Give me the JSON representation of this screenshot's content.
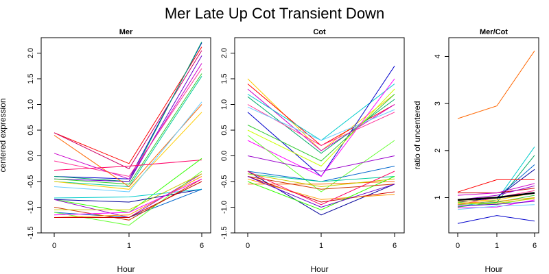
{
  "title": "Mer Late Up Cot Transient Down",
  "chart_data": [
    {
      "type": "line",
      "title": "Mer",
      "xlabel": "Hour",
      "ylabel": "centered expression",
      "categories": [
        "0",
        "1",
        "6"
      ],
      "ylim": [
        -1.5,
        2.3
      ],
      "yticks": [
        -1.5,
        -1.0,
        -0.5,
        0.0,
        0.5,
        1.0,
        1.5,
        2.0
      ],
      "ytick_labels": [
        "-1.5",
        "-1.0",
        "-0.5",
        "0.0",
        "0.5",
        "1.0",
        "1.5",
        "2.0"
      ],
      "series": [
        {
          "color": "#ff0000",
          "values": [
            0.45,
            -0.15,
            2.12
          ]
        },
        {
          "color": "#cc0066",
          "values": [
            0.45,
            -0.25,
            2.05
          ]
        },
        {
          "color": "#0000cc",
          "values": [
            -0.4,
            -0.45,
            2.2
          ]
        },
        {
          "color": "#00aa66",
          "values": [
            -0.4,
            -0.5,
            2.22
          ]
        },
        {
          "color": "#6600cc",
          "values": [
            -0.45,
            -0.5,
            1.95
          ]
        },
        {
          "color": "#cc00cc",
          "values": [
            0.05,
            -0.45,
            1.8
          ]
        },
        {
          "color": "#ff3399",
          "values": [
            -0.1,
            -0.4,
            1.7
          ]
        },
        {
          "color": "#33cc33",
          "values": [
            -0.45,
            -0.55,
            1.6
          ]
        },
        {
          "color": "#00cc99",
          "values": [
            -0.5,
            -0.6,
            1.55
          ]
        },
        {
          "color": "#ff6600",
          "values": [
            0.4,
            -0.6,
            1.0
          ]
        },
        {
          "color": "#ffcc00",
          "values": [
            -0.5,
            -0.65,
            0.85
          ]
        },
        {
          "color": "#66ccff",
          "values": [
            -0.6,
            -0.7,
            1.05
          ]
        },
        {
          "color": "#ff0066",
          "values": [
            -0.28,
            -0.2,
            -0.08
          ]
        },
        {
          "color": "#33ff00",
          "values": [
            -0.85,
            -1.1,
            -0.05
          ]
        },
        {
          "color": "#000099",
          "values": [
            -0.85,
            -0.9,
            -0.65
          ]
        },
        {
          "color": "#00cccc",
          "values": [
            -0.82,
            -0.8,
            -0.65
          ]
        },
        {
          "color": "#0066cc",
          "values": [
            -1.1,
            -1.2,
            -0.65
          ]
        },
        {
          "color": "#9900cc",
          "values": [
            -0.85,
            -1.2,
            -0.35
          ]
        },
        {
          "color": "#cc3300",
          "values": [
            -1.0,
            -1.25,
            -0.45
          ]
        },
        {
          "color": "#66ff33",
          "values": [
            -1.1,
            -1.35,
            -0.3
          ]
        },
        {
          "color": "#cccc00",
          "values": [
            -1.05,
            -1.05,
            -0.35
          ]
        },
        {
          "color": "#ff9900",
          "values": [
            -1.2,
            -1.15,
            -0.4
          ]
        },
        {
          "color": "#cc0000",
          "values": [
            -1.2,
            -1.2,
            -0.5
          ]
        },
        {
          "color": "#ff00ff",
          "values": [
            -1.15,
            -1.1,
            -0.45
          ]
        }
      ]
    },
    {
      "type": "line",
      "title": "Cot",
      "xlabel": "Hour",
      "categories": [
        "0",
        "1",
        "6"
      ],
      "ylim": [
        -1.5,
        2.3
      ],
      "yticks": [
        -1.5,
        -1.0,
        -0.5,
        0.0,
        0.5,
        1.0,
        1.5,
        2.0
      ],
      "ytick_labels": [
        "-1.5",
        "-1.0",
        "-0.5",
        "0.0",
        "0.5",
        "1.0",
        "1.5",
        "2.0"
      ],
      "series": [
        {
          "color": "#ffcc00",
          "values": [
            1.5,
            0.1,
            1.2
          ]
        },
        {
          "color": "#ff0000",
          "values": [
            1.4,
            0.2,
            1.0
          ]
        },
        {
          "color": "#cc00cc",
          "values": [
            1.3,
            0.1,
            1.0
          ]
        },
        {
          "color": "#00cccc",
          "values": [
            1.2,
            0.3,
            1.4
          ]
        },
        {
          "color": "#00aa66",
          "values": [
            1.15,
            0.05,
            1.1
          ]
        },
        {
          "color": "#0000cc",
          "values": [
            0.85,
            -0.4,
            1.75
          ]
        },
        {
          "color": "#ff3399",
          "values": [
            1.0,
            0.2,
            0.85
          ]
        },
        {
          "color": "#66ccff",
          "values": [
            0.95,
            0.3,
            0.9
          ]
        },
        {
          "color": "#33cc33",
          "values": [
            0.6,
            -0.1,
            1.2
          ]
        },
        {
          "color": "#ccff00",
          "values": [
            0.5,
            -0.2,
            1.3
          ]
        },
        {
          "color": "#ff00ff",
          "values": [
            0.3,
            -0.4,
            1.5
          ]
        },
        {
          "color": "#66ff33",
          "values": [
            0.4,
            -0.7,
            0.3
          ]
        },
        {
          "color": "#9900cc",
          "values": [
            0.0,
            -0.3,
            0.0
          ]
        },
        {
          "color": "#000099",
          "values": [
            -0.3,
            -1.15,
            -0.55
          ]
        },
        {
          "color": "#0066cc",
          "values": [
            -0.3,
            -0.5,
            -0.2
          ]
        },
        {
          "color": "#00cc99",
          "values": [
            -0.35,
            -0.5,
            -0.4
          ]
        },
        {
          "color": "#ff6600",
          "values": [
            -0.55,
            -0.55,
            -0.5
          ]
        },
        {
          "color": "#cc0000",
          "values": [
            -0.4,
            -0.9,
            -0.7
          ]
        },
        {
          "color": "#ff9900",
          "values": [
            -0.45,
            -0.85,
            -0.75
          ]
        },
        {
          "color": "#33ff00",
          "values": [
            -0.5,
            -1.05,
            -0.4
          ]
        },
        {
          "color": "#cccc00",
          "values": [
            -0.35,
            -0.6,
            -0.45
          ]
        },
        {
          "color": "#cc3300",
          "values": [
            -0.4,
            -0.65,
            -0.55
          ]
        },
        {
          "color": "#ff0066",
          "values": [
            -0.3,
            -0.95,
            -0.3
          ]
        },
        {
          "color": "#6600cc",
          "values": [
            -0.4,
            -1.0,
            -0.55
          ]
        }
      ]
    },
    {
      "type": "line",
      "title": "Mer/Cot",
      "xlabel": "Hour",
      "ylabel": "ratio of uncentered",
      "categories": [
        "0",
        "1",
        "6"
      ],
      "ylim": [
        0.25,
        4.4
      ],
      "yticks": [
        1,
        2,
        3,
        4
      ],
      "ytick_labels": [
        "1",
        "2",
        "3",
        "4"
      ],
      "series": [
        {
          "color": "#ff6600",
          "values": [
            2.68,
            2.95,
            4.12
          ]
        },
        {
          "color": "#0000cc",
          "values": [
            0.45,
            0.62,
            0.5
          ]
        },
        {
          "color": "#00cccc",
          "values": [
            0.8,
            0.95,
            2.08
          ]
        },
        {
          "color": "#00aa66",
          "values": [
            0.85,
            0.9,
            1.9
          ]
        },
        {
          "color": "#0066cc",
          "values": [
            0.95,
            1.0,
            1.7
          ]
        },
        {
          "color": "#000099",
          "values": [
            0.9,
            1.0,
            1.6
          ]
        },
        {
          "color": "#ff0000",
          "values": [
            1.12,
            1.38,
            1.38
          ]
        },
        {
          "color": "#cc0000",
          "values": [
            1.1,
            1.1,
            1.2
          ]
        },
        {
          "color": "#cc00cc",
          "values": [
            1.05,
            1.1,
            1.3
          ]
        },
        {
          "color": "#9900cc",
          "values": [
            0.95,
            1.05,
            1.25
          ]
        },
        {
          "color": "#ff3399",
          "values": [
            0.85,
            1.0,
            1.15
          ]
        },
        {
          "color": "#33cc33",
          "values": [
            0.8,
            0.9,
            1.05
          ]
        },
        {
          "color": "#66ff33",
          "values": [
            0.9,
            0.85,
            1.0
          ]
        },
        {
          "color": "#ffcc00",
          "values": [
            0.92,
            0.95,
            1.1
          ]
        },
        {
          "color": "#ff00ff",
          "values": [
            0.78,
            0.8,
            0.95
          ]
        },
        {
          "color": "#66ccff",
          "values": [
            0.75,
            0.82,
            0.85
          ]
        },
        {
          "color": "#ff9900",
          "values": [
            0.88,
            0.92,
            1.0
          ]
        },
        {
          "color": "#cccc00",
          "values": [
            0.86,
            0.88,
            0.98
          ]
        },
        {
          "color": "#6600cc",
          "values": [
            0.82,
            0.86,
            0.92
          ]
        },
        {
          "color": "#000000",
          "values": [
            0.95,
            1.0,
            1.1
          ],
          "bold": true
        }
      ]
    }
  ]
}
